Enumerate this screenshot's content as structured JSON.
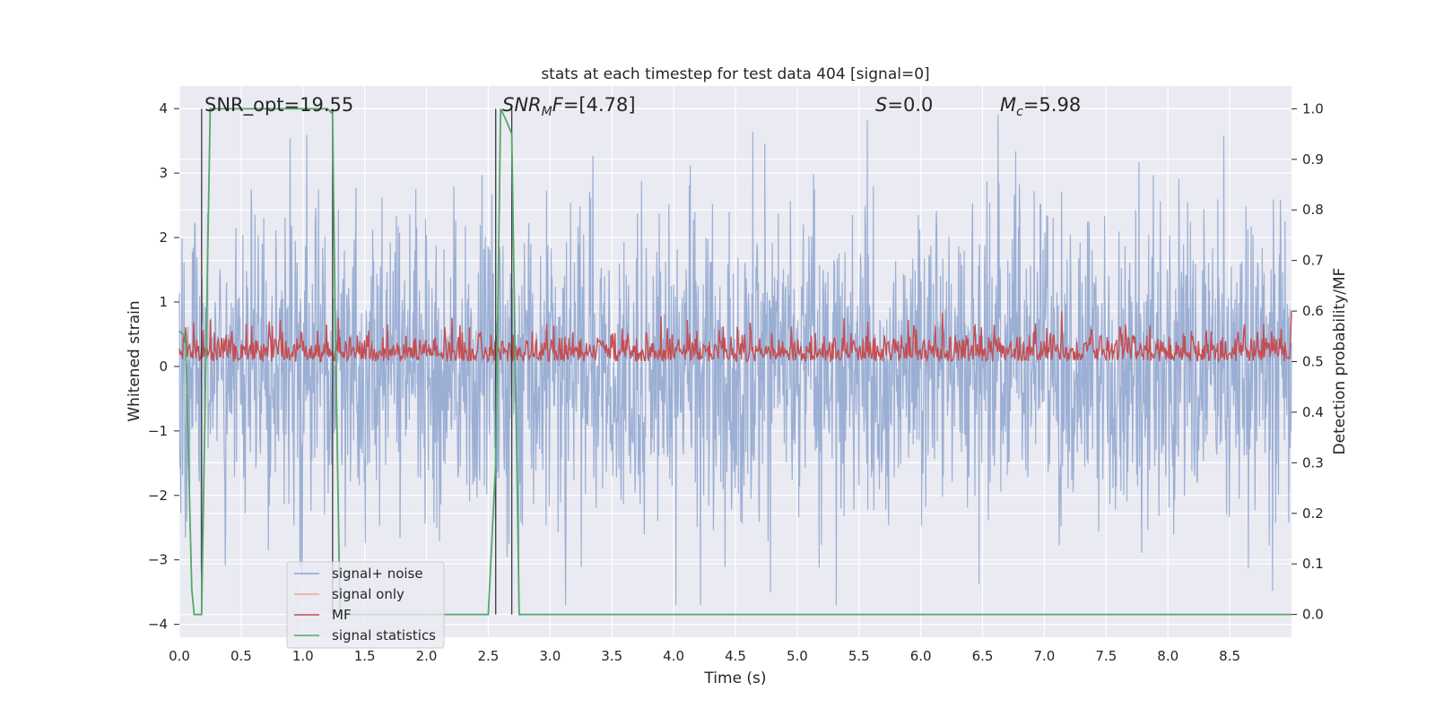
{
  "chart_data": {
    "type": "line",
    "title": "stats at each timestep for test data 404 [signal=0]",
    "xlabel": "Time (s)",
    "ylabel": "Whitened strain",
    "y2label": "Detection probability/MF",
    "xlim": [
      0.0,
      9.0
    ],
    "ylim": [
      -4.2,
      4.35
    ],
    "y2lim": [
      -0.045,
      1.045
    ],
    "x_ticks": [
      "0.0",
      "0.5",
      "1.0",
      "1.5",
      "2.0",
      "2.5",
      "3.0",
      "3.5",
      "4.0",
      "4.5",
      "5.0",
      "5.5",
      "6.0",
      "6.5",
      "7.0",
      "7.5",
      "8.0",
      "8.5"
    ],
    "y_ticks": [
      "4",
      "3",
      "2",
      "1",
      "0",
      "−1",
      "−2",
      "−3",
      "−4"
    ],
    "y2_ticks": [
      "1.0",
      "0.9",
      "0.8",
      "0.7",
      "0.6",
      "0.5",
      "0.4",
      "0.3",
      "0.2",
      "0.1",
      "0.0"
    ],
    "grid": true,
    "legend_position": "lower-left",
    "annotations": {
      "snr_opt": "SNR_opt=19.55",
      "snr_mf_sym": "SNR",
      "snr_mf_sub": "M",
      "snr_mf_f": "F",
      "snr_mf_val": "=[4.78]",
      "s_sym": "S",
      "s_val": "=0.0",
      "mc_sym": "M",
      "mc_sub": "c",
      "mc_val": "=5.98"
    },
    "vlines_x": [
      0.18,
      1.24,
      2.56,
      2.69
    ],
    "series": [
      {
        "name": "signal+ noise",
        "color": "#8da4cf",
        "description": "whitened strain, random noise roughly between -3.5 and 4 around 0"
      },
      {
        "name": "signal only",
        "color": "#e8a98c",
        "values": []
      },
      {
        "name": "MF",
        "color": "#c44e52",
        "description": "matched filter output on right axis, ~0.5-0.58"
      },
      {
        "name": "signal statistics",
        "color": "#55a868",
        "x": [
          0.0,
          0.05,
          0.1,
          0.12,
          0.18,
          0.2,
          0.25,
          0.3,
          1.2,
          1.24,
          1.26,
          1.3,
          1.5,
          2.0,
          2.5,
          2.56,
          2.6,
          2.64,
          2.69,
          2.75,
          2.8,
          9.0
        ],
        "values": [
          0.56,
          0.55,
          0.05,
          0.0,
          0.0,
          0.3,
          1.0,
          1.0,
          1.0,
          0.99,
          0.6,
          0.0,
          0.0,
          0.0,
          0.0,
          0.3,
          1.0,
          0.98,
          0.95,
          0.0,
          0.0,
          0.0
        ]
      }
    ]
  }
}
